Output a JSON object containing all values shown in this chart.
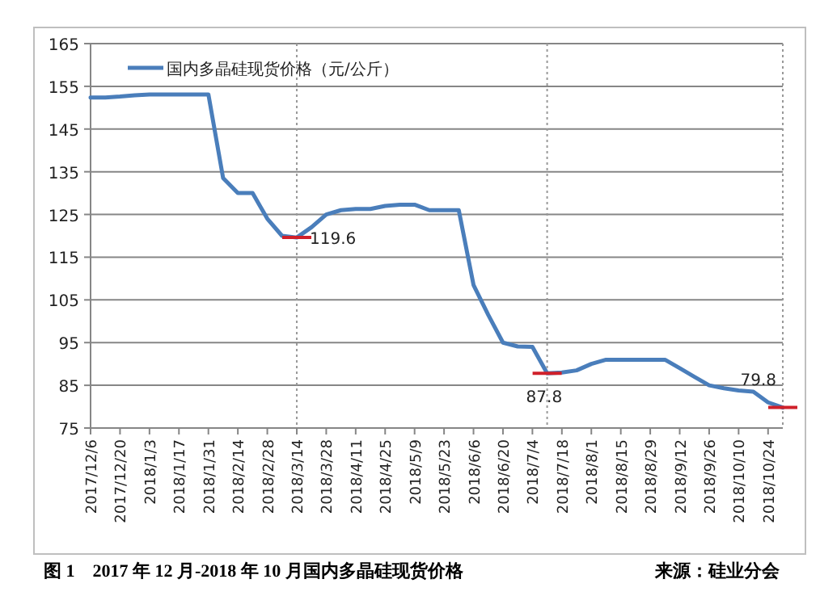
{
  "chart_data": {
    "type": "line",
    "title": "图 1　2017 年 12 月-2018 年 10 月国内多晶硅现货价格",
    "x": [
      "2017-12-06",
      "2017-12-13",
      "2017-12-20",
      "2017-12-27",
      "2018-01-03",
      "2018-01-10",
      "2018-01-17",
      "2018-01-24",
      "2018-01-31",
      "2018-02-07",
      "2018-02-14",
      "2018-02-21",
      "2018-02-28",
      "2018-03-07",
      "2018-03-14",
      "2018-03-21",
      "2018-03-28",
      "2018-04-04",
      "2018-04-11",
      "2018-04-18",
      "2018-04-25",
      "2018-05-02",
      "2018-05-09",
      "2018-05-16",
      "2018-05-23",
      "2018-05-30",
      "2018-06-06",
      "2018-06-13",
      "2018-06-20",
      "2018-06-27",
      "2018-07-04",
      "2018-07-11",
      "2018-07-18",
      "2018-07-25",
      "2018-08-01",
      "2018-08-08",
      "2018-08-15",
      "2018-08-22",
      "2018-08-29",
      "2018-09-05",
      "2018-09-12",
      "2018-09-19",
      "2018-09-26",
      "2018-10-03",
      "2018-10-10",
      "2018-10-17",
      "2018-10-24",
      "2018-10-31"
    ],
    "series": [
      {
        "name": "国内多晶硅现货价格（元/公斤）",
        "color": "#4a7ebb",
        "values": [
          152.4,
          152.4,
          152.6,
          152.9,
          153.1,
          153.1,
          153.1,
          153.1,
          153.1,
          133.5,
          130,
          130,
          124,
          120,
          119.6,
          122,
          125,
          126,
          126.3,
          126.3,
          127,
          127.3,
          127.3,
          126,
          126,
          126,
          108.5,
          101.5,
          95,
          94.1,
          94,
          87.8,
          88,
          88.5,
          90,
          91,
          91,
          91,
          91,
          91,
          89,
          87,
          85,
          84.3,
          83.8,
          83.5,
          81,
          79.8
        ]
      }
    ],
    "xlim": [
      "2017-12-06",
      "2018-10-31"
    ],
    "xticks": [
      {
        "value": "2017-12-06",
        "label": "2017/12/6"
      },
      {
        "value": "2017-12-20",
        "label": "2017/12/20"
      },
      {
        "value": "2018-01-03",
        "label": "2018/1/3"
      },
      {
        "value": "2018-01-17",
        "label": "2018/1/17"
      },
      {
        "value": "2018-01-31",
        "label": "2018/1/31"
      },
      {
        "value": "2018-02-14",
        "label": "2018/2/14"
      },
      {
        "value": "2018-02-28",
        "label": "2018/2/28"
      },
      {
        "value": "2018-03-14",
        "label": "2018/3/14"
      },
      {
        "value": "2018-03-28",
        "label": "2018/3/28"
      },
      {
        "value": "2018-04-11",
        "label": "2018/4/11"
      },
      {
        "value": "2018-04-25",
        "label": "2018/4/25"
      },
      {
        "value": "2018-05-09",
        "label": "2018/5/9"
      },
      {
        "value": "2018-05-23",
        "label": "2018/5/23"
      },
      {
        "value": "2018-06-06",
        "label": "2018/6/6"
      },
      {
        "value": "2018-06-20",
        "label": "2018/6/20"
      },
      {
        "value": "2018-07-04",
        "label": "2018/7/4"
      },
      {
        "value": "2018-07-18",
        "label": "2018/7/18"
      },
      {
        "value": "2018-08-01",
        "label": "2018/8/1"
      },
      {
        "value": "2018-08-15",
        "label": "2018/8/15"
      },
      {
        "value": "2018-08-29",
        "label": "2018/8/29"
      },
      {
        "value": "2018-09-12",
        "label": "2018/9/12"
      },
      {
        "value": "2018-09-26",
        "label": "2018/9/26"
      },
      {
        "value": "2018-10-10",
        "label": "2018/10/10"
      },
      {
        "value": "2018-10-24",
        "label": "2018/10/24"
      }
    ],
    "ylim": [
      75,
      165
    ],
    "yticks": [
      75,
      85,
      95,
      105,
      115,
      125,
      135,
      145,
      155,
      165
    ],
    "grid": "y",
    "legend": "top left",
    "marker": "none",
    "line_style": "solid",
    "ref_lines": [
      {
        "axis": "x",
        "value": "2018-03-14",
        "color": "#999999",
        "line_style": "dotted"
      },
      {
        "axis": "x",
        "value": "2018-07-11",
        "color": "#999999",
        "line_style": "dotted"
      },
      {
        "axis": "x",
        "value": "2018-10-31",
        "color": "#999999",
        "line_style": "dotted"
      }
    ],
    "annotations": [
      {
        "text": "119.6",
        "x": "2018-03-14",
        "y": 119.6
      },
      {
        "text": "87.8",
        "x": "2018-07-11",
        "y": 87.8
      },
      {
        "text": "79.8",
        "x": "2018-10-31",
        "y": 79.8
      },
      "来源：硅业分会"
    ]
  }
}
